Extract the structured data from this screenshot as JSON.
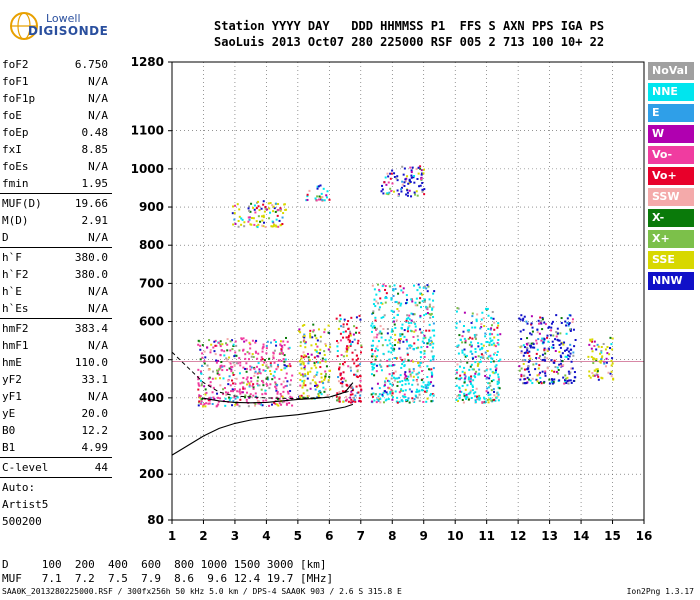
{
  "logo": {
    "line1": "Lowell",
    "line2": "DIGISONDE"
  },
  "header": {
    "labels": "Station YYYY DAY   DDD HHMMSS P1  FFS S AXN PPS IGA PS",
    "values": "SaoLuis 2013 Oct07 280 225000 RSF 005 2 713 100 10+ 22"
  },
  "params": {
    "group1": [
      {
        "name": "foF2",
        "value": "6.750"
      },
      {
        "name": "foF1",
        "value": "N/A"
      },
      {
        "name": "foF1p",
        "value": "N/A"
      },
      {
        "name": "foE",
        "value": "N/A"
      },
      {
        "name": "foEp",
        "value": "0.48"
      },
      {
        "name": "fxI",
        "value": "8.85"
      },
      {
        "name": "foEs",
        "value": "N/A"
      },
      {
        "name": "fmin",
        "value": "1.95"
      }
    ],
    "group2": [
      {
        "name": "MUF(D)",
        "value": "19.66"
      },
      {
        "name": "M(D)",
        "value": "2.91"
      },
      {
        "name": "D",
        "value": "N/A"
      }
    ],
    "group3": [
      {
        "name": "h`F",
        "value": "380.0"
      },
      {
        "name": "h`F2",
        "value": "380.0"
      },
      {
        "name": "h`E",
        "value": "N/A"
      },
      {
        "name": "h`Es",
        "value": "N/A"
      }
    ],
    "group4": [
      {
        "name": "hmF2",
        "value": "383.4"
      },
      {
        "name": "hmF1",
        "value": "N/A"
      },
      {
        "name": "hmE",
        "value": "110.0"
      },
      {
        "name": "yF2",
        "value": "33.1"
      },
      {
        "name": "yF1",
        "value": "N/A"
      },
      {
        "name": "yE",
        "value": "20.0"
      },
      {
        "name": "B0",
        "value": "12.2"
      },
      {
        "name": "B1",
        "value": "4.99"
      }
    ],
    "group5": [
      {
        "name": "C-level",
        "value": "44"
      }
    ],
    "auto": [
      "Auto:",
      "Artist5",
      "500200"
    ]
  },
  "legend": [
    {
      "label": "NoVal",
      "color": "#a0a0a0"
    },
    {
      "label": "NNE",
      "color": "#00e5ee"
    },
    {
      "label": "E",
      "color": "#2f9fe8"
    },
    {
      "label": "W",
      "color": "#b000b0"
    },
    {
      "label": "Vo-",
      "color": "#f03ca0"
    },
    {
      "label": "Vo+",
      "color": "#e8002a"
    },
    {
      "label": "SSW",
      "color": "#f4aaaa"
    },
    {
      "label": "X-",
      "color": "#0a7a0a"
    },
    {
      "label": "X+",
      "color": "#7cc04a"
    },
    {
      "label": "SSE",
      "color": "#d8d800"
    },
    {
      "label": "NNW",
      "color": "#1010c8"
    }
  ],
  "muf_table": {
    "d_row": "D     100  200  400  600  800 1000 1500 3000 [km]",
    "muf_row": "MUF   7.1  7.2  7.5  7.9  8.6  9.6 12.4 19.7 [MHz]"
  },
  "footer": {
    "left": "SAA0K_2013280225000.RSF / 300fx256h 50 kHz 5.0 km / DPS-4 SAA0K 903 / 2.6 S 315.8 E",
    "right": "Ion2Png 1.3.17"
  },
  "chart_data": {
    "type": "scatter",
    "title": "",
    "xlabel": "",
    "ylabel": "",
    "xlim": [
      1,
      16
    ],
    "ylim": [
      80,
      1280
    ],
    "x_ticks": [
      1,
      2,
      3,
      4,
      5,
      6,
      7,
      8,
      9,
      10,
      11,
      12,
      13,
      14,
      15,
      16
    ],
    "y_ticks": [
      80,
      200,
      300,
      400,
      500,
      600,
      700,
      800,
      900,
      1000,
      1100,
      1280
    ],
    "grid": true,
    "echo_clusters": [
      {
        "x_range": [
          1.8,
          4.8
        ],
        "y_range": [
          380,
          560
        ],
        "dominant": "Vo-"
      },
      {
        "x_range": [
          2.9,
          4.6
        ],
        "y_range": [
          850,
          920
        ],
        "dominant": "SSE"
      },
      {
        "x_range": [
          5.0,
          6.0
        ],
        "y_range": [
          400,
          600
        ],
        "dominant": "SSE"
      },
      {
        "x_range": [
          5.2,
          6.0
        ],
        "y_range": [
          920,
          960
        ],
        "dominant": "NNE"
      },
      {
        "x_range": [
          6.2,
          7.0
        ],
        "y_range": [
          390,
          620
        ],
        "dominant": "Vo+"
      },
      {
        "x_range": [
          7.3,
          9.3
        ],
        "y_range": [
          390,
          700
        ],
        "dominant": "NNE"
      },
      {
        "x_range": [
          7.6,
          9.0
        ],
        "y_range": [
          930,
          1010
        ],
        "dominant": "NNW"
      },
      {
        "x_range": [
          10.0,
          11.4
        ],
        "y_range": [
          390,
          640
        ],
        "dominant": "NNE"
      },
      {
        "x_range": [
          12.0,
          13.8
        ],
        "y_range": [
          440,
          620
        ],
        "dominant": "NNW"
      },
      {
        "x_range": [
          14.2,
          15.0
        ],
        "y_range": [
          450,
          560
        ],
        "dominant": "SSE"
      }
    ],
    "profile_curve": [
      [
        1,
        250
      ],
      [
        1.5,
        275
      ],
      [
        2,
        300
      ],
      [
        2.5,
        320
      ],
      [
        3,
        333
      ],
      [
        3.5,
        342
      ],
      [
        4,
        348
      ],
      [
        4.5,
        352
      ],
      [
        5,
        356
      ],
      [
        5.5,
        362
      ],
      [
        6,
        368
      ],
      [
        6.5,
        376
      ],
      [
        6.75,
        383
      ]
    ],
    "trace_curve": [
      [
        1.95,
        400
      ],
      [
        2.5,
        392
      ],
      [
        3,
        388
      ],
      [
        3.5,
        387
      ],
      [
        4,
        388
      ],
      [
        4.5,
        392
      ],
      [
        5,
        396
      ],
      [
        5.5,
        398
      ],
      [
        6,
        402
      ],
      [
        6.5,
        415
      ],
      [
        6.75,
        440
      ]
    ],
    "dashed_curve": [
      [
        1,
        520
      ],
      [
        1.5,
        480
      ],
      [
        2,
        440
      ],
      [
        2.5,
        415
      ],
      [
        3,
        405
      ],
      [
        4,
        400
      ],
      [
        5,
        398
      ],
      [
        6,
        402
      ],
      [
        6.75,
        420
      ]
    ],
    "reference_line_y": 495
  }
}
